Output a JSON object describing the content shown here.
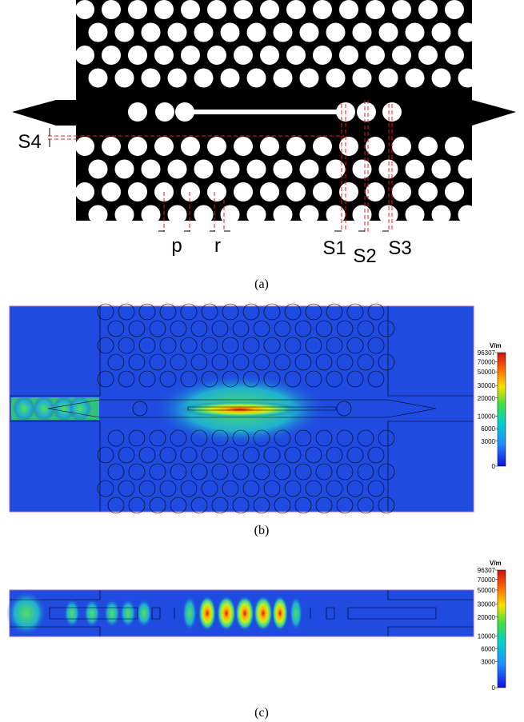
{
  "panel_a": {
    "labels": {
      "p": "p",
      "r": "r",
      "s1": "S1",
      "s2": "S2",
      "s3": "S3",
      "s4": "S4"
    },
    "caption": "(a)"
  },
  "panel_b": {
    "unit": "V/m",
    "colorbar_ticks": [
      96307,
      70000,
      50000,
      30000,
      20000,
      10000,
      6000,
      3000,
      0
    ],
    "caption": "(b)"
  },
  "panel_c": {
    "unit": "V/m",
    "colorbar_ticks": [
      96307,
      70000,
      50000,
      30000,
      20000,
      10000,
      6000,
      3000,
      0
    ],
    "caption": "(c)"
  }
}
